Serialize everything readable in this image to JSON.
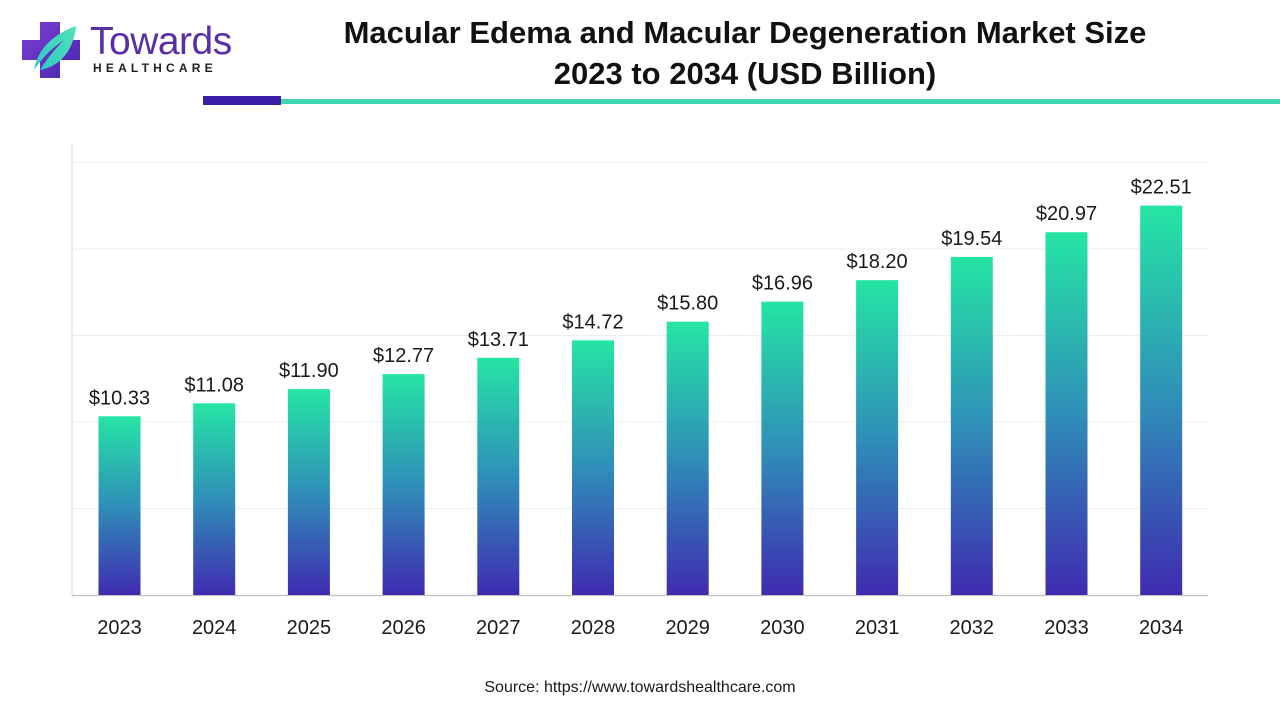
{
  "brand": {
    "name": "Towards",
    "tagline": "HEALTHCARE",
    "icon": "medical-cross-leaf-icon",
    "colors": {
      "purple": "#5a2ea6",
      "dark_purple": "#3b1fa8",
      "teal": "#3ed6b0"
    }
  },
  "header": {
    "title_line1": "Macular Edema and Macular Degeneration Market Size",
    "title_line2": "2023 to 2034 (USD Billion)"
  },
  "chart_data": {
    "type": "bar",
    "title": "Macular Edema and Macular Degeneration Market Size 2023 to 2034 (USD Billion)",
    "categories": [
      "2023",
      "2024",
      "2025",
      "2026",
      "2027",
      "2028",
      "2029",
      "2030",
      "2031",
      "2032",
      "2033",
      "2034"
    ],
    "values": [
      10.33,
      11.08,
      11.9,
      12.77,
      13.71,
      14.72,
      15.8,
      16.96,
      18.2,
      19.54,
      20.97,
      22.51
    ],
    "labels": [
      "$10.33",
      "$11.08",
      "$11.90",
      "$12.77",
      "$13.71",
      "$14.72",
      "$15.80",
      "$16.96",
      "$18.20",
      "$19.54",
      "$20.97",
      "$22.51"
    ],
    "xlabel": "",
    "ylabel": "",
    "ylim": [
      0,
      25
    ],
    "grid": true,
    "legend": "none",
    "bar_gradient": {
      "top": "#25e5a4",
      "mid": "#2f8fb8",
      "bottom": "#3f2bb0"
    }
  },
  "footer": {
    "source": "Source: https://www.towardshealthcare.com"
  }
}
